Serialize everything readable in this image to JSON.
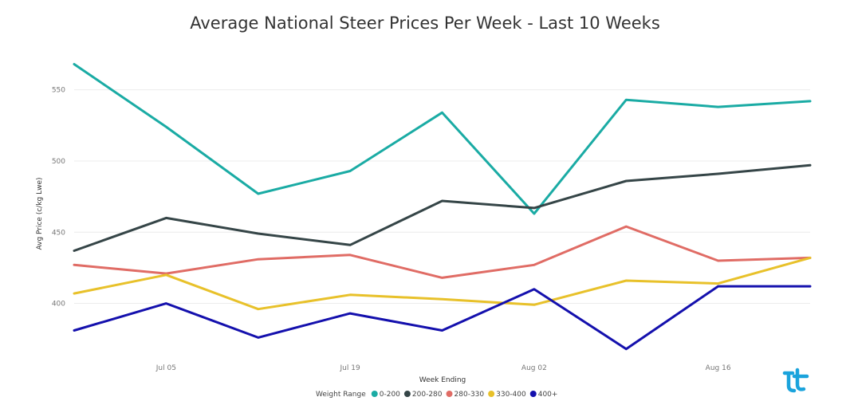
{
  "chart_data": {
    "type": "line",
    "title": "Average National Steer Prices Per Week - Last 10 Weeks",
    "xlabel": "Week Ending",
    "ylabel": "Avg Price (c/kg Lwe)",
    "x": [
      "2020-06-28",
      "2020-07-05",
      "2020-07-12",
      "2020-07-19",
      "2020-07-26",
      "2020-08-02",
      "2020-08-09",
      "2020-08-16",
      "2020-08-23"
    ],
    "x_ticks": [
      {
        "x": "2020-07-05",
        "label": "Jul 05"
      },
      {
        "x": "2020-07-19",
        "label": "Jul 19"
      },
      {
        "x": "2020-08-02",
        "label": "Aug 02"
      },
      {
        "x": "2020-08-16",
        "label": "Aug 16"
      }
    ],
    "xlim": [
      "2020-06-28",
      "2020-08-23"
    ],
    "ylim": [
      360,
      575
    ],
    "y_ticks": [
      400,
      450,
      500,
      550
    ],
    "grid": true,
    "legend_title": "Weight Range",
    "legend_position": "bottom",
    "series": [
      {
        "name": "0-200",
        "color": "#1aaba4",
        "values": [
          568,
          524,
          477,
          493,
          534,
          463,
          543,
          538,
          542
        ]
      },
      {
        "name": "200-280",
        "color": "#354547",
        "values": [
          437,
          460,
          449,
          441,
          472,
          467,
          486,
          491,
          497
        ]
      },
      {
        "name": "280-330",
        "color": "#e06c65",
        "values": [
          427,
          421,
          431,
          434,
          418,
          427,
          454,
          430,
          432
        ]
      },
      {
        "name": "330-400",
        "color": "#e8c12a",
        "values": [
          407,
          420,
          396,
          406,
          403,
          399,
          416,
          414,
          432
        ]
      },
      {
        "name": "400+",
        "color": "#1410ad",
        "values": [
          381,
          400,
          376,
          393,
          381,
          410,
          368,
          412,
          412
        ]
      }
    ]
  },
  "logo": {
    "name": "logo-icon",
    "color": "#1aa3dc"
  }
}
